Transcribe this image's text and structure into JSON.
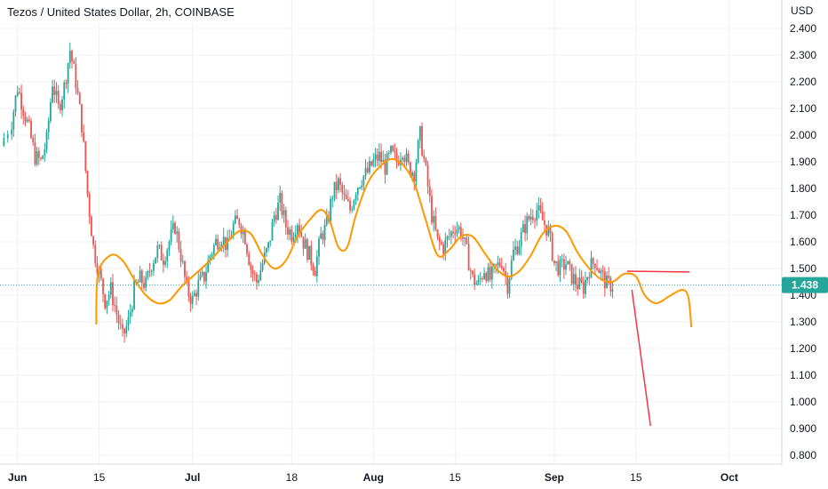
{
  "header": {
    "title": "Tezos / United States Dollar, 2h, COINBASE"
  },
  "price_axis": {
    "currency": "USD",
    "last_price": "1.438"
  },
  "chart_data": {
    "type": "candlestick",
    "title": "Tezos / United States Dollar, 2h, COINBASE",
    "ylabel": "USD",
    "ylim": [
      0.75,
      2.45
    ],
    "y_ticks": [
      "2.400",
      "2.300",
      "2.200",
      "2.100",
      "2.000",
      "1.900",
      "1.800",
      "1.700",
      "1.600",
      "1.500",
      "1.400",
      "1.300",
      "1.200",
      "1.100",
      "1.000",
      "0.900",
      "0.800"
    ],
    "x_ticks": [
      "Jun",
      "15",
      "Jul",
      "18",
      "Aug",
      "15",
      "Sep",
      "15",
      "Oct"
    ],
    "x_tick_days": [
      1,
      15,
      31,
      48,
      62,
      76,
      93,
      107,
      123
    ],
    "x_range_days": [
      -2,
      132
    ],
    "grid": true,
    "last_price": 1.438,
    "colors": {
      "up": "#26a69a",
      "down": "#ef5350",
      "wave": "#ff9800",
      "projection": "#f23645",
      "price_line": "#26a69a",
      "label_bg": "#26a69a"
    },
    "price_path": [
      [
        -2,
        1.96
      ],
      [
        0,
        2.05
      ],
      [
        1,
        2.18
      ],
      [
        2,
        2.1
      ],
      [
        3,
        2.02
      ],
      [
        4,
        1.92
      ],
      [
        5,
        1.9
      ],
      [
        6,
        1.98
      ],
      [
        7,
        2.2
      ],
      [
        8,
        2.1
      ],
      [
        9,
        2.18
      ],
      [
        10,
        2.32
      ],
      [
        11,
        2.2
      ],
      [
        12,
        2.04
      ],
      [
        13,
        1.78
      ],
      [
        14,
        1.58
      ],
      [
        15,
        1.48
      ],
      [
        16,
        1.38
      ],
      [
        17,
        1.42
      ],
      [
        18,
        1.33
      ],
      [
        19,
        1.24
      ],
      [
        20,
        1.3
      ],
      [
        21,
        1.42
      ],
      [
        22,
        1.46
      ],
      [
        23,
        1.44
      ],
      [
        24,
        1.52
      ],
      [
        25,
        1.57
      ],
      [
        26,
        1.54
      ],
      [
        27,
        1.6
      ],
      [
        28,
        1.66
      ],
      [
        29,
        1.55
      ],
      [
        30,
        1.42
      ],
      [
        31,
        1.38
      ],
      [
        32,
        1.44
      ],
      [
        33,
        1.47
      ],
      [
        34,
        1.55
      ],
      [
        35,
        1.6
      ],
      [
        36,
        1.62
      ],
      [
        37,
        1.58
      ],
      [
        38,
        1.66
      ],
      [
        39,
        1.68
      ],
      [
        40,
        1.62
      ],
      [
        41,
        1.5
      ],
      [
        42,
        1.45
      ],
      [
        43,
        1.52
      ],
      [
        44,
        1.58
      ],
      [
        45,
        1.7
      ],
      [
        46,
        1.75
      ],
      [
        47,
        1.66
      ],
      [
        48,
        1.63
      ],
      [
        49,
        1.68
      ],
      [
        50,
        1.6
      ],
      [
        51,
        1.55
      ],
      [
        52,
        1.5
      ],
      [
        53,
        1.62
      ],
      [
        54,
        1.66
      ],
      [
        55,
        1.78
      ],
      [
        56,
        1.82
      ],
      [
        57,
        1.76
      ],
      [
        58,
        1.72
      ],
      [
        59,
        1.8
      ],
      [
        60,
        1.84
      ],
      [
        61,
        1.86
      ],
      [
        62,
        1.9
      ],
      [
        63,
        1.92
      ],
      [
        64,
        1.88
      ],
      [
        65,
        1.93
      ],
      [
        66,
        1.9
      ],
      [
        67,
        1.95
      ],
      [
        68,
        1.88
      ],
      [
        69,
        1.86
      ],
      [
        70,
        2.0
      ],
      [
        71,
        1.86
      ],
      [
        72,
        1.7
      ],
      [
        73,
        1.6
      ],
      [
        74,
        1.58
      ],
      [
        75,
        1.62
      ],
      [
        76,
        1.66
      ],
      [
        77,
        1.64
      ],
      [
        78,
        1.56
      ],
      [
        79,
        1.46
      ],
      [
        80,
        1.44
      ],
      [
        81,
        1.5
      ],
      [
        82,
        1.46
      ],
      [
        83,
        1.5
      ],
      [
        84,
        1.53
      ],
      [
        85,
        1.44
      ],
      [
        86,
        1.56
      ],
      [
        87,
        1.6
      ],
      [
        88,
        1.66
      ],
      [
        89,
        1.7
      ],
      [
        90,
        1.72
      ],
      [
        91,
        1.68
      ],
      [
        92,
        1.64
      ],
      [
        93,
        1.52
      ],
      [
        94,
        1.5
      ],
      [
        95,
        1.52
      ],
      [
        96,
        1.47
      ],
      [
        97,
        1.44
      ],
      [
        98,
        1.43
      ],
      [
        99,
        1.5
      ],
      [
        100,
        1.53
      ],
      [
        101,
        1.48
      ],
      [
        102,
        1.44
      ],
      [
        103,
        1.438
      ]
    ],
    "wave_path": [
      [
        14.5,
        1.29
      ],
      [
        14.8,
        1.48
      ],
      [
        17,
        1.55
      ],
      [
        19,
        1.53
      ],
      [
        21,
        1.46
      ],
      [
        23,
        1.4
      ],
      [
        25,
        1.37
      ],
      [
        27,
        1.38
      ],
      [
        29,
        1.43
      ],
      [
        31,
        1.47
      ],
      [
        34,
        1.53
      ],
      [
        37,
        1.6
      ],
      [
        39,
        1.64
      ],
      [
        41,
        1.63
      ],
      [
        43,
        1.55
      ],
      [
        45,
        1.5
      ],
      [
        47,
        1.53
      ],
      [
        49,
        1.62
      ],
      [
        51,
        1.68
      ],
      [
        53,
        1.72
      ],
      [
        54.5,
        1.68
      ],
      [
        56,
        1.58
      ],
      [
        57.5,
        1.58
      ],
      [
        59,
        1.7
      ],
      [
        61,
        1.82
      ],
      [
        63,
        1.88
      ],
      [
        65,
        1.91
      ],
      [
        67,
        1.89
      ],
      [
        69,
        1.82
      ],
      [
        71,
        1.68
      ],
      [
        73,
        1.55
      ],
      [
        75,
        1.57
      ],
      [
        77,
        1.62
      ],
      [
        79,
        1.62
      ],
      [
        81,
        1.56
      ],
      [
        83,
        1.5
      ],
      [
        85,
        1.47
      ],
      [
        87,
        1.49
      ],
      [
        89,
        1.55
      ],
      [
        91,
        1.63
      ],
      [
        93,
        1.66
      ],
      [
        95,
        1.64
      ],
      [
        97,
        1.56
      ],
      [
        99,
        1.5
      ],
      [
        101,
        1.46
      ],
      [
        103,
        1.45
      ],
      [
        105,
        1.48
      ],
      [
        107,
        1.47
      ],
      [
        108.5,
        1.4
      ],
      [
        110.5,
        1.37
      ],
      [
        113,
        1.4
      ],
      [
        115,
        1.42
      ],
      [
        116,
        1.39
      ],
      [
        116.5,
        1.28
      ]
    ],
    "projection_lines": [
      {
        "from": [
          105.5,
          1.49
        ],
        "to": [
          116.2,
          1.487
        ]
      },
      {
        "from": [
          106.3,
          1.42
        ],
        "to": [
          109.5,
          0.91
        ]
      }
    ]
  }
}
